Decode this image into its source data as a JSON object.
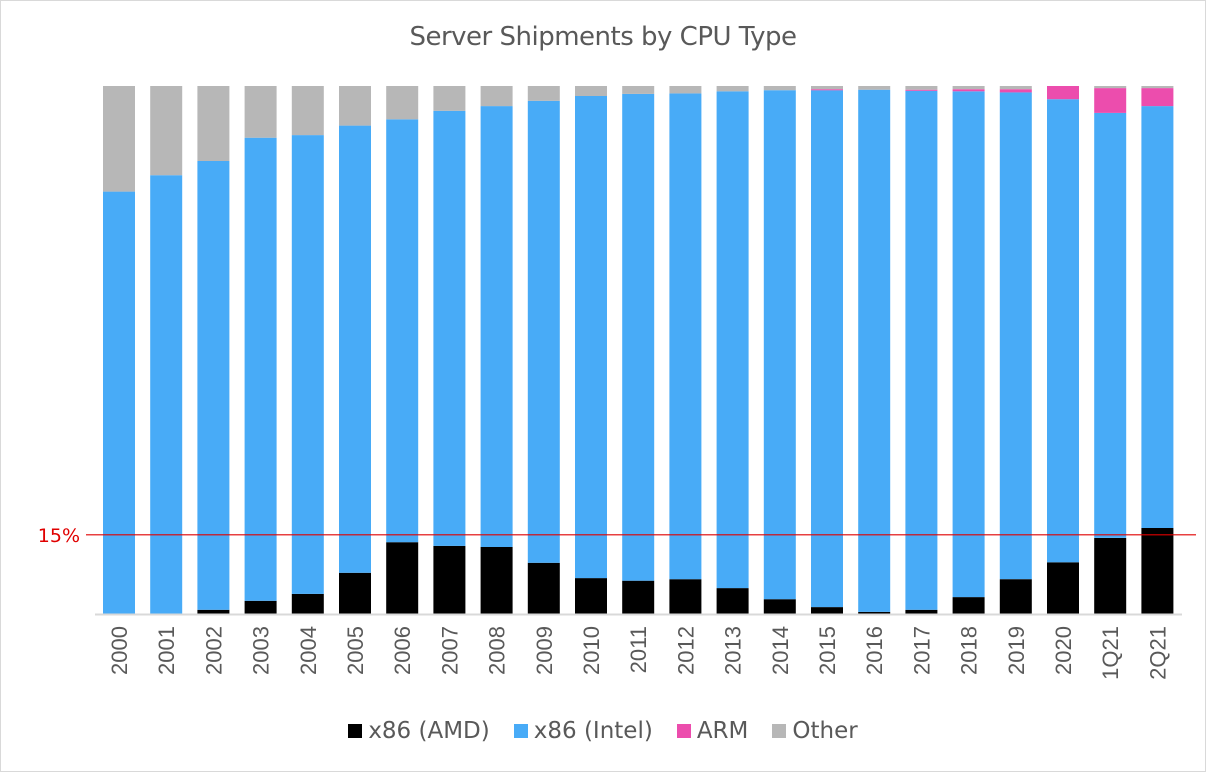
{
  "chart_data": {
    "type": "bar",
    "stacked": true,
    "percent_stacked": true,
    "title": "Server Shipments by CPU Type",
    "xlabel": "",
    "ylabel": "",
    "ylim": [
      0,
      100
    ],
    "grid": false,
    "legend_position": "bottom",
    "categories": [
      "2000",
      "2001",
      "2002",
      "2003",
      "2004",
      "2005",
      "2006",
      "2007",
      "2008",
      "2009",
      "2010",
      "2011",
      "2012",
      "2013",
      "2014",
      "2015",
      "2016",
      "2017",
      "2018",
      "2019",
      "2020",
      "1Q21",
      "2Q21"
    ],
    "series": [
      {
        "name": "x86 (AMD)",
        "color": "#000000",
        "values": [
          0,
          0,
          0.8,
          2.5,
          3.8,
          7.8,
          13.6,
          12.9,
          12.7,
          9.7,
          6.8,
          6.3,
          6.6,
          4.9,
          2.8,
          1.3,
          0.4,
          0.8,
          3.2,
          6.6,
          9.8,
          14.4,
          16.3
        ]
      },
      {
        "name": "x86 (Intel)",
        "color": "#48abf7",
        "values": [
          80.0,
          83.1,
          85.0,
          87.7,
          86.9,
          84.7,
          80.1,
          82.4,
          83.5,
          87.5,
          91.3,
          92.2,
          92.0,
          94.1,
          96.4,
          97.9,
          98.9,
          98.3,
          95.8,
          92.2,
          87.7,
          80.5,
          79.9
        ]
      },
      {
        "name": "ARM",
        "color": "#ec4dad",
        "values": [
          0,
          0,
          0,
          0,
          0,
          0,
          0,
          0,
          0,
          0,
          0,
          0,
          0,
          0,
          0,
          0.2,
          0,
          0.2,
          0.4,
          0.6,
          2.5,
          4.7,
          3.4
        ]
      },
      {
        "name": "Other",
        "color": "#b7b7b7",
        "values": [
          20.0,
          16.9,
          14.2,
          9.8,
          9.3,
          7.5,
          6.3,
          4.7,
          3.8,
          2.8,
          1.9,
          1.5,
          1.4,
          1.0,
          0.8,
          0.6,
          0.7,
          0.7,
          0.6,
          0.6,
          0.0,
          0.4,
          0.4
        ]
      }
    ],
    "annotations": [
      {
        "type": "reference_line",
        "y": 15,
        "label": "15%",
        "color": "#e00000"
      }
    ]
  }
}
